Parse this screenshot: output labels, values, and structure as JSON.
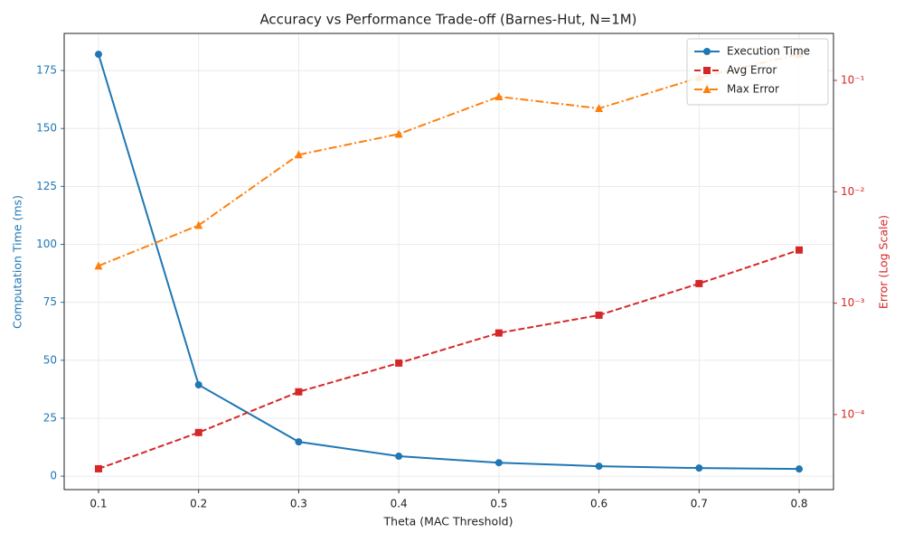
{
  "chart_data": {
    "type": "line",
    "title": "Accuracy vs Performance Trade-off (Barnes-Hut, N=1M)",
    "x_label": "Theta (MAC Threshold)",
    "y_label": "Computation Time (ms)",
    "y2_label": "Error (Log Scale)",
    "x": [
      0.1,
      0.2,
      0.3,
      0.4,
      0.5,
      0.6,
      0.7,
      0.8
    ],
    "xlim": [
      0.0657,
      0.8343
    ],
    "xticks": [
      0.1,
      0.2,
      0.3,
      0.4,
      0.5,
      0.6,
      0.7,
      0.8
    ],
    "ylim": [
      -5.8,
      191
    ],
    "yticks": [
      0,
      25,
      50,
      75,
      100,
      125,
      150,
      175
    ],
    "y2lim": [
      2.12e-05,
      0.264
    ],
    "y2ticks": [
      {
        "value": 0.0001,
        "label": "10⁻⁴"
      },
      {
        "value": 0.001,
        "label": "10⁻³"
      },
      {
        "value": 0.01,
        "label": "10⁻²"
      },
      {
        "value": 0.1,
        "label": "10⁻¹"
      }
    ],
    "y2_log": true,
    "grid": true,
    "y_color": "#1f77b4",
    "y2_color": "#d62728",
    "legend": "upper right",
    "series": [
      {
        "name": "Execution Time",
        "color": "#1f77b4",
        "linestyle": "solid",
        "marker": "circle",
        "axis": "y",
        "values": [
          182,
          39.4,
          14.8,
          8.6,
          5.8,
          4.3,
          3.5,
          3.1
        ]
      },
      {
        "name": "Avg Error",
        "color": "#d62728",
        "linestyle": "dashed",
        "marker": "square",
        "axis": "y2",
        "values": [
          3.26e-05,
          6.9e-05,
          0.00016,
          0.00029,
          0.00054,
          0.00078,
          0.0015,
          0.003
        ]
      },
      {
        "name": "Max Error",
        "color": "#ff7f0e",
        "linestyle": "dashdot",
        "marker": "triangle",
        "axis": "y2",
        "values": [
          0.00216,
          0.005,
          0.0215,
          0.033,
          0.0714,
          0.056,
          0.106,
          0.172
        ]
      }
    ]
  }
}
